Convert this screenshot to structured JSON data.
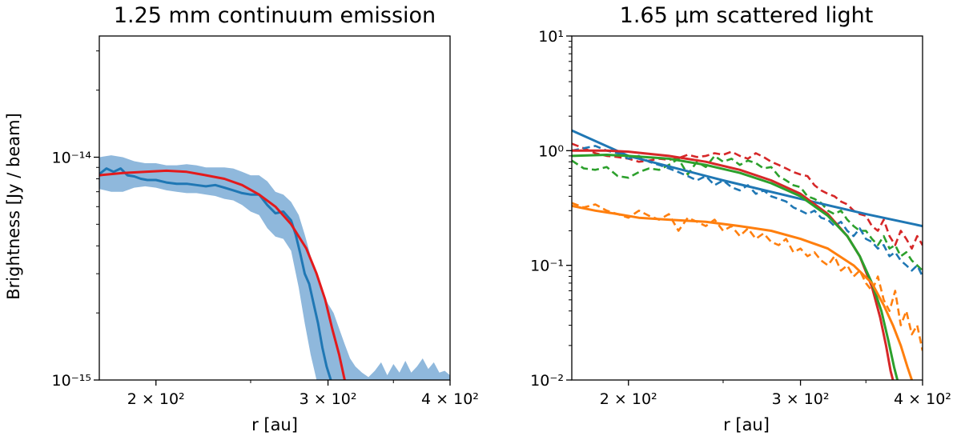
{
  "chart_data": [
    {
      "type": "line",
      "title": "1.25 mm continuum emission",
      "xlabel": "r [au]",
      "ylabel": "Brightness [Jy / beam]",
      "xscale": "log",
      "yscale": "log",
      "xlim": [
        175,
        400
      ],
      "ylim": [
        1e-15,
        3.5e-14
      ],
      "xticks": [
        {
          "value": 200,
          "label": "2 × 10²"
        },
        {
          "value": 300,
          "label": "3 × 10²"
        },
        {
          "value": 400,
          "label": "4 × 10²"
        }
      ],
      "yticks": [
        {
          "value": 1e-15,
          "label": "10⁻¹⁵"
        },
        {
          "value": 1e-14,
          "label": "10⁻¹⁴"
        }
      ],
      "colors": {
        "data": "#1f77b4",
        "band": "#8fb8dc",
        "model": "#e31a1c"
      },
      "series": [
        {
          "kind": "band",
          "color": "#8fb8dc",
          "x": [
            175,
            180,
            185,
            190,
            195,
            200,
            205,
            210,
            215,
            220,
            225,
            230,
            235,
            240,
            245,
            250,
            255,
            260,
            265,
            270,
            275,
            280,
            284,
            288,
            292,
            296,
            300,
            304,
            308,
            312,
            316,
            320,
            325,
            330,
            335,
            340,
            345,
            350,
            355,
            360,
            365,
            370,
            375,
            380,
            385,
            390,
            395,
            400
          ],
          "upper": [
            1e-14,
            1.02e-14,
            1e-14,
            9.6e-15,
            9.4e-15,
            9.4e-15,
            9.2e-15,
            9.2e-15,
            9.3e-15,
            9.2e-15,
            9e-15,
            9e-15,
            9e-15,
            8.9e-15,
            8.6e-15,
            8.3e-15,
            8.3e-15,
            7.8e-15,
            7e-15,
            6.8e-15,
            6.3e-15,
            5.5e-15,
            4.5e-15,
            3.6e-15,
            3e-15,
            2.5e-15,
            2.2e-15,
            2e-15,
            1.7e-15,
            1.45e-15,
            1.25e-15,
            1.15e-15,
            1.08e-15,
            1.03e-15,
            1.1e-15,
            1.2e-15,
            1.05e-15,
            1.18e-15,
            1.08e-15,
            1.22e-15,
            1.08e-15,
            1.15e-15,
            1.25e-15,
            1.12e-15,
            1.2e-15,
            1.08e-15,
            1.1e-15,
            1.05e-15
          ],
          "lower": [
            7.2e-15,
            7e-15,
            7e-15,
            7.3e-15,
            7.4e-15,
            7.3e-15,
            7.1e-15,
            7e-15,
            6.9e-15,
            6.9e-15,
            6.8e-15,
            6.7e-15,
            6.5e-15,
            6.4e-15,
            6.1e-15,
            5.7e-15,
            5.5e-15,
            4.8e-15,
            4.4e-15,
            4.3e-15,
            3.8e-15,
            2.6e-15,
            1.8e-15,
            1.3e-15,
            1e-15,
            1e-15,
            1e-15,
            1e-15,
            1e-15,
            1e-15,
            1e-15,
            1e-15,
            1e-15,
            1e-15,
            1e-15,
            1e-15,
            1e-15,
            1e-15,
            1e-15,
            1e-15,
            1e-15,
            1e-15,
            1e-15,
            1e-15,
            1e-15,
            1e-15,
            1e-15,
            1e-15
          ]
        },
        {
          "kind": "line",
          "color": "#1f77b4",
          "width": 3,
          "x": [
            175,
            178,
            181,
            184,
            187,
            190,
            193,
            196,
            200,
            205,
            210,
            215,
            220,
            225,
            230,
            235,
            240,
            245,
            250,
            255,
            260,
            265,
            270,
            275,
            278,
            281,
            284,
            287,
            290,
            293,
            296,
            299,
            302
          ],
          "y": [
            8.4e-15,
            8.9e-15,
            8.6e-15,
            8.9e-15,
            8.3e-15,
            8.2e-15,
            8e-15,
            7.9e-15,
            7.9e-15,
            7.7e-15,
            7.6e-15,
            7.6e-15,
            7.5e-15,
            7.4e-15,
            7.5e-15,
            7.3e-15,
            7.1e-15,
            6.9e-15,
            6.8e-15,
            6.8e-15,
            6.1e-15,
            5.6e-15,
            5.7e-15,
            5.2e-15,
            4.5e-15,
            3.7e-15,
            3e-15,
            2.7e-15,
            2.2e-15,
            1.8e-15,
            1.4e-15,
            1.15e-15,
            1e-15
          ]
        },
        {
          "kind": "line",
          "color": "#e31a1c",
          "width": 3,
          "x": [
            175,
            185,
            195,
            205,
            215,
            225,
            235,
            245,
            255,
            265,
            275,
            285,
            292,
            298,
            303,
            308,
            312
          ],
          "y": [
            8.3e-15,
            8.5e-15,
            8.6e-15,
            8.7e-15,
            8.6e-15,
            8.3e-15,
            8e-15,
            7.5e-15,
            6.8e-15,
            6e-15,
            5e-15,
            3.9e-15,
            3e-15,
            2.3e-15,
            1.7e-15,
            1.3e-15,
            1e-15
          ]
        }
      ]
    },
    {
      "type": "line",
      "title": "1.65 μm scattered light",
      "xlabel": "r [au]",
      "ylabel": "",
      "xscale": "log",
      "yscale": "log",
      "xlim": [
        175,
        400
      ],
      "ylim": [
        0.01,
        10
      ],
      "xticks": [
        {
          "value": 200,
          "label": "2 × 10²"
        },
        {
          "value": 300,
          "label": "3 × 10²"
        },
        {
          "value": 400,
          "label": "4 × 10²"
        }
      ],
      "yticks": [
        {
          "value": 0.01,
          "label": "10⁻²"
        },
        {
          "value": 0.1,
          "label": "10⁻¹"
        },
        {
          "value": 1,
          "label": "10⁰"
        },
        {
          "value": 10,
          "label": "10¹"
        }
      ],
      "colors": {
        "blue": "#1f77b4",
        "orange": "#ff7f0e",
        "green": "#2ca02c",
        "red": "#d62728"
      },
      "series": [
        {
          "kind": "line",
          "color": "#d62728",
          "width": 2.6,
          "dashed": true,
          "x": [
            175,
            180,
            185,
            190,
            195,
            200,
            205,
            210,
            215,
            220,
            225,
            230,
            235,
            240,
            245,
            250,
            255,
            260,
            265,
            270,
            275,
            280,
            285,
            290,
            295,
            300,
            305,
            310,
            315,
            320,
            325,
            330,
            335,
            340,
            345,
            350,
            355,
            360,
            365,
            370,
            375,
            380,
            385,
            390,
            395,
            400
          ],
          "y": [
            1.15,
            1.05,
            0.95,
            0.9,
            0.88,
            0.85,
            0.8,
            0.82,
            0.85,
            0.83,
            0.86,
            0.92,
            0.88,
            0.9,
            0.95,
            0.92,
            0.98,
            0.9,
            0.85,
            0.95,
            0.88,
            0.8,
            0.75,
            0.7,
            0.65,
            0.62,
            0.6,
            0.5,
            0.45,
            0.42,
            0.4,
            0.36,
            0.34,
            0.3,
            0.28,
            0.27,
            0.22,
            0.2,
            0.25,
            0.18,
            0.15,
            0.2,
            0.17,
            0.14,
            0.18,
            0.15
          ]
        },
        {
          "kind": "line",
          "color": "#2ca02c",
          "width": 2.6,
          "dashed": true,
          "x": [
            175,
            180,
            185,
            190,
            195,
            200,
            205,
            210,
            215,
            220,
            225,
            230,
            235,
            240,
            245,
            250,
            255,
            260,
            265,
            270,
            275,
            280,
            285,
            290,
            295,
            300,
            305,
            310,
            315,
            320,
            325,
            330,
            335,
            340,
            345,
            350,
            355,
            360,
            365,
            370,
            375,
            380,
            385,
            390,
            395,
            400
          ],
          "y": [
            0.82,
            0.7,
            0.68,
            0.72,
            0.6,
            0.58,
            0.65,
            0.7,
            0.68,
            0.75,
            0.85,
            0.62,
            0.8,
            0.72,
            0.9,
            0.8,
            0.85,
            0.75,
            0.82,
            0.78,
            0.7,
            0.72,
            0.6,
            0.55,
            0.5,
            0.48,
            0.4,
            0.38,
            0.35,
            0.3,
            0.28,
            0.3,
            0.25,
            0.22,
            0.2,
            0.2,
            0.17,
            0.15,
            0.18,
            0.14,
            0.15,
            0.12,
            0.13,
            0.11,
            0.1,
            0.09
          ]
        },
        {
          "kind": "line",
          "color": "#1f77b4",
          "width": 2.6,
          "dashed": true,
          "x": [
            175,
            180,
            185,
            190,
            195,
            200,
            205,
            210,
            215,
            220,
            225,
            230,
            235,
            240,
            245,
            250,
            255,
            260,
            265,
            270,
            275,
            280,
            285,
            290,
            295,
            300,
            305,
            310,
            315,
            320,
            325,
            330,
            335,
            340,
            345,
            350,
            355,
            360,
            365,
            370,
            375,
            380,
            385,
            390,
            395,
            400
          ],
          "y": [
            1.0,
            1.05,
            1.1,
            1.0,
            0.95,
            0.85,
            0.9,
            0.8,
            0.75,
            0.7,
            0.65,
            0.6,
            0.55,
            0.6,
            0.5,
            0.55,
            0.48,
            0.45,
            0.5,
            0.42,
            0.45,
            0.4,
            0.38,
            0.36,
            0.32,
            0.3,
            0.28,
            0.3,
            0.26,
            0.25,
            0.22,
            0.24,
            0.2,
            0.18,
            0.21,
            0.17,
            0.16,
            0.14,
            0.15,
            0.12,
            0.13,
            0.11,
            0.1,
            0.09,
            0.1,
            0.08
          ]
        },
        {
          "kind": "line",
          "color": "#ff7f0e",
          "width": 2.6,
          "dashed": true,
          "x": [
            175,
            180,
            185,
            190,
            195,
            200,
            205,
            210,
            215,
            220,
            225,
            230,
            235,
            240,
            245,
            250,
            255,
            260,
            265,
            270,
            275,
            280,
            285,
            290,
            295,
            300,
            305,
            310,
            315,
            320,
            325,
            330,
            335,
            340,
            345,
            350,
            355,
            360,
            365,
            370,
            375,
            380,
            385,
            390,
            395,
            400
          ],
          "y": [
            0.35,
            0.32,
            0.34,
            0.3,
            0.28,
            0.26,
            0.3,
            0.27,
            0.25,
            0.28,
            0.2,
            0.26,
            0.24,
            0.22,
            0.25,
            0.2,
            0.22,
            0.18,
            0.21,
            0.17,
            0.19,
            0.16,
            0.15,
            0.17,
            0.13,
            0.14,
            0.12,
            0.13,
            0.11,
            0.1,
            0.12,
            0.09,
            0.1,
            0.08,
            0.09,
            0.07,
            0.06,
            0.08,
            0.05,
            0.04,
            0.06,
            0.03,
            0.04,
            0.025,
            0.03,
            0.018
          ]
        },
        {
          "kind": "line",
          "color": "#1f77b4",
          "width": 3,
          "x": [
            175,
            200,
            250,
            300,
            350,
            400
          ],
          "y": [
            1.5,
            0.9,
            0.55,
            0.38,
            0.28,
            0.22
          ]
        },
        {
          "kind": "line",
          "color": "#d62728",
          "width": 3,
          "x": [
            175,
            190,
            200,
            220,
            240,
            260,
            280,
            300,
            320,
            335,
            345,
            355,
            362,
            367,
            371,
            373
          ],
          "y": [
            1.0,
            1.0,
            0.98,
            0.9,
            0.8,
            0.68,
            0.55,
            0.42,
            0.28,
            0.18,
            0.12,
            0.065,
            0.035,
            0.02,
            0.012,
            0.01
          ]
        },
        {
          "kind": "line",
          "color": "#2ca02c",
          "width": 3,
          "x": [
            175,
            190,
            200,
            220,
            240,
            260,
            280,
            300,
            320,
            335,
            345,
            355,
            363,
            369,
            374,
            377
          ],
          "y": [
            0.9,
            0.92,
            0.9,
            0.85,
            0.75,
            0.64,
            0.52,
            0.4,
            0.27,
            0.18,
            0.12,
            0.07,
            0.04,
            0.022,
            0.013,
            0.01
          ]
        },
        {
          "kind": "line",
          "color": "#ff7f0e",
          "width": 3,
          "x": [
            175,
            185,
            195,
            205,
            220,
            240,
            260,
            280,
            300,
            320,
            340,
            355,
            365,
            373,
            380,
            386,
            390
          ],
          "y": [
            0.33,
            0.3,
            0.28,
            0.26,
            0.25,
            0.24,
            0.22,
            0.2,
            0.17,
            0.14,
            0.1,
            0.07,
            0.045,
            0.03,
            0.02,
            0.013,
            0.01
          ]
        }
      ]
    }
  ]
}
